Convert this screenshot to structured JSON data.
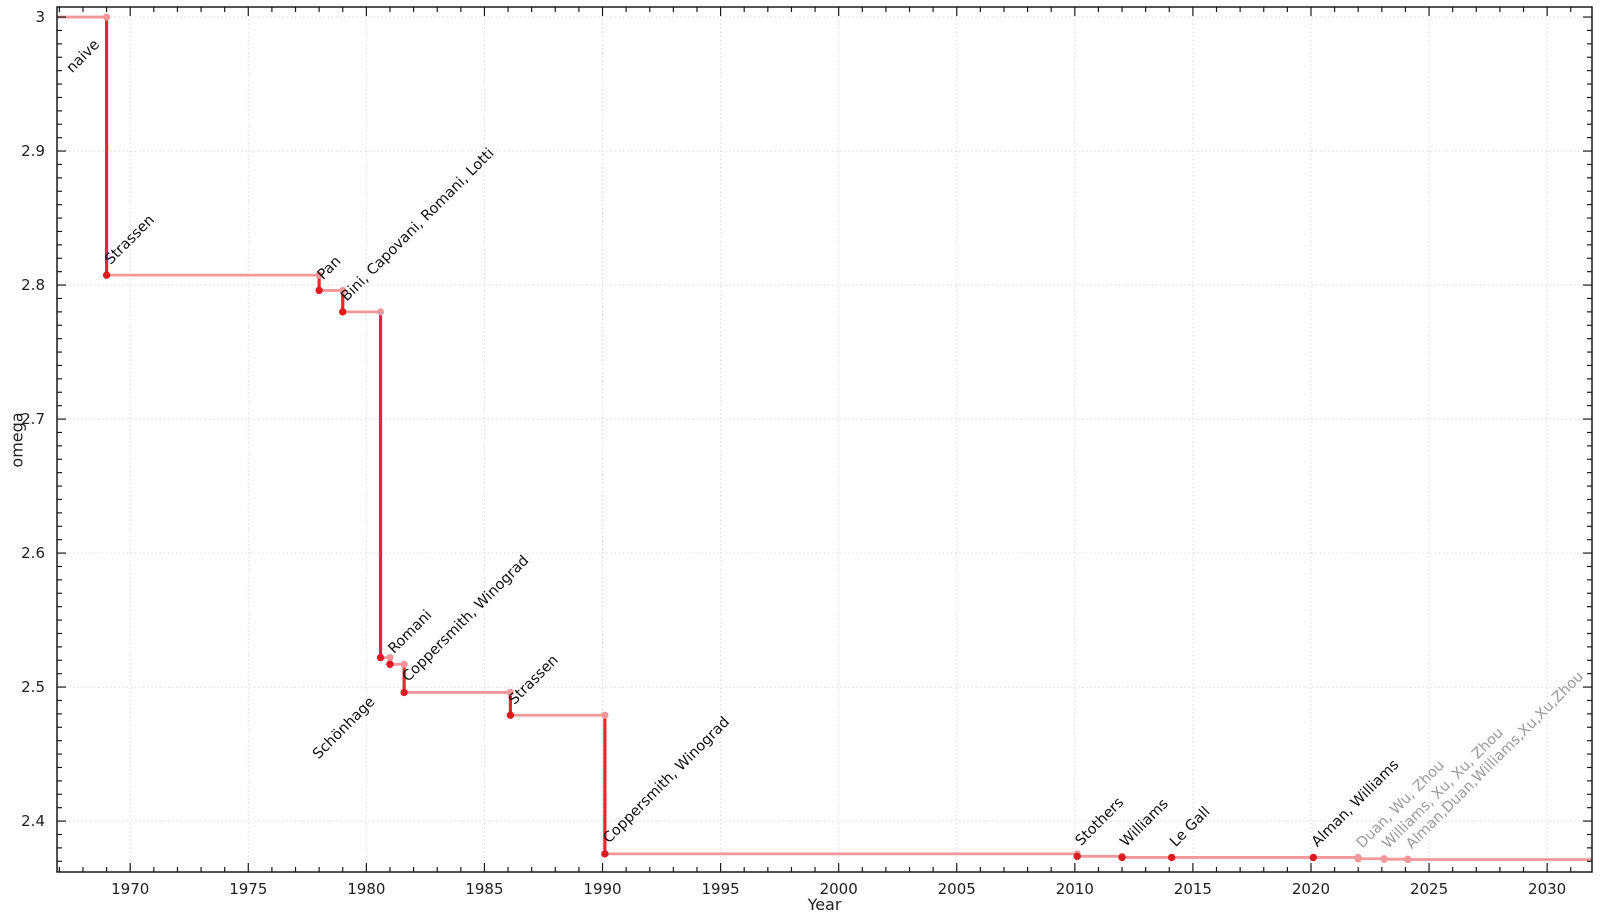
{
  "colors": {
    "background": "#ffffff",
    "line_strong": "#e8262b",
    "line_light": "#f2989a",
    "marker_strong": "#dc1c21",
    "marker_light": "#f2989a",
    "grid": "#dadada",
    "frame": "#1a1a1a",
    "tick_label": "#1f1f1f",
    "annotation_dark": "#111111",
    "annotation_gray": "#9a9a9a"
  },
  "chart_data": {
    "type": "line",
    "subtype": "step-after",
    "title": "",
    "xlabel": "Year",
    "ylabel": "omega",
    "x_range": [
      1966.9,
      2031.9
    ],
    "y_range": [
      2.362,
      3.0075
    ],
    "x_major_ticks": [
      1970,
      1975,
      1980,
      1985,
      1990,
      1995,
      2000,
      2005,
      2010,
      2015,
      2020,
      2025,
      2030
    ],
    "x_minor_tick_step": 1,
    "y_major_ticks": [
      2.4,
      2.5,
      2.6,
      2.7,
      2.8,
      2.9,
      3
    ],
    "y_minor_tick_step": 0.01,
    "grid": {
      "show": true,
      "style": "dotted",
      "on": "major-both-axes"
    },
    "legend": {
      "show": false
    },
    "start_point": {
      "year": 1966.9,
      "omega": 3,
      "meaning": "naive algorithm, omega = 3"
    },
    "end_year": 2031.9,
    "points": [
      {
        "year": 1969,
        "omega": 2.8074,
        "label": "Strassen",
        "status": "established"
      },
      {
        "year": 1978,
        "omega": 2.796,
        "label": "Pan",
        "status": "established"
      },
      {
        "year": 1979,
        "omega": 2.78,
        "label": "Bini, Capovani, Romani, Lotti",
        "status": "established"
      },
      {
        "year": 1980.6,
        "omega": 2.522,
        "label": "Schönhage",
        "status": "established",
        "label_dx": -62,
        "label_dy": 102
      },
      {
        "year": 1981,
        "omega": 2.517,
        "label": "Romani",
        "status": "established"
      },
      {
        "year": 1981.6,
        "omega": 2.496,
        "label": "Coppersmith, Winograd",
        "status": "established"
      },
      {
        "year": 1986.1,
        "omega": 2.479,
        "label": "Strassen",
        "status": "established"
      },
      {
        "year": 1990.1,
        "omega": 2.3755,
        "label": "Coppersmith, Winograd",
        "status": "established"
      },
      {
        "year": 2010.1,
        "omega": 2.3737,
        "label": "Stothers",
        "status": "established"
      },
      {
        "year": 2012,
        "omega": 2.372873,
        "label": "Williams",
        "status": "established"
      },
      {
        "year": 2014.1,
        "omega": 2.3728639,
        "label": "Le Gall",
        "status": "established"
      },
      {
        "year": 2020.1,
        "omega": 2.3728596,
        "label": "Alman, Williams",
        "status": "established"
      },
      {
        "year": 2022,
        "omega": 2.37188,
        "label": "Duan, Wu, Zhou",
        "status": "recent"
      },
      {
        "year": 2023.1,
        "omega": 2.371552,
        "label": "Williams, Xu, Xu, Zhou",
        "status": "recent"
      },
      {
        "year": 2024.1,
        "omega": 2.371339,
        "label": "Alman,Duan,Williams,Xu,Xu,Zhou",
        "status": "recent"
      }
    ],
    "extra_annotations": [
      {
        "text": "naive",
        "year": 1967.54,
        "omega": 2.958,
        "status": "established"
      }
    ]
  }
}
